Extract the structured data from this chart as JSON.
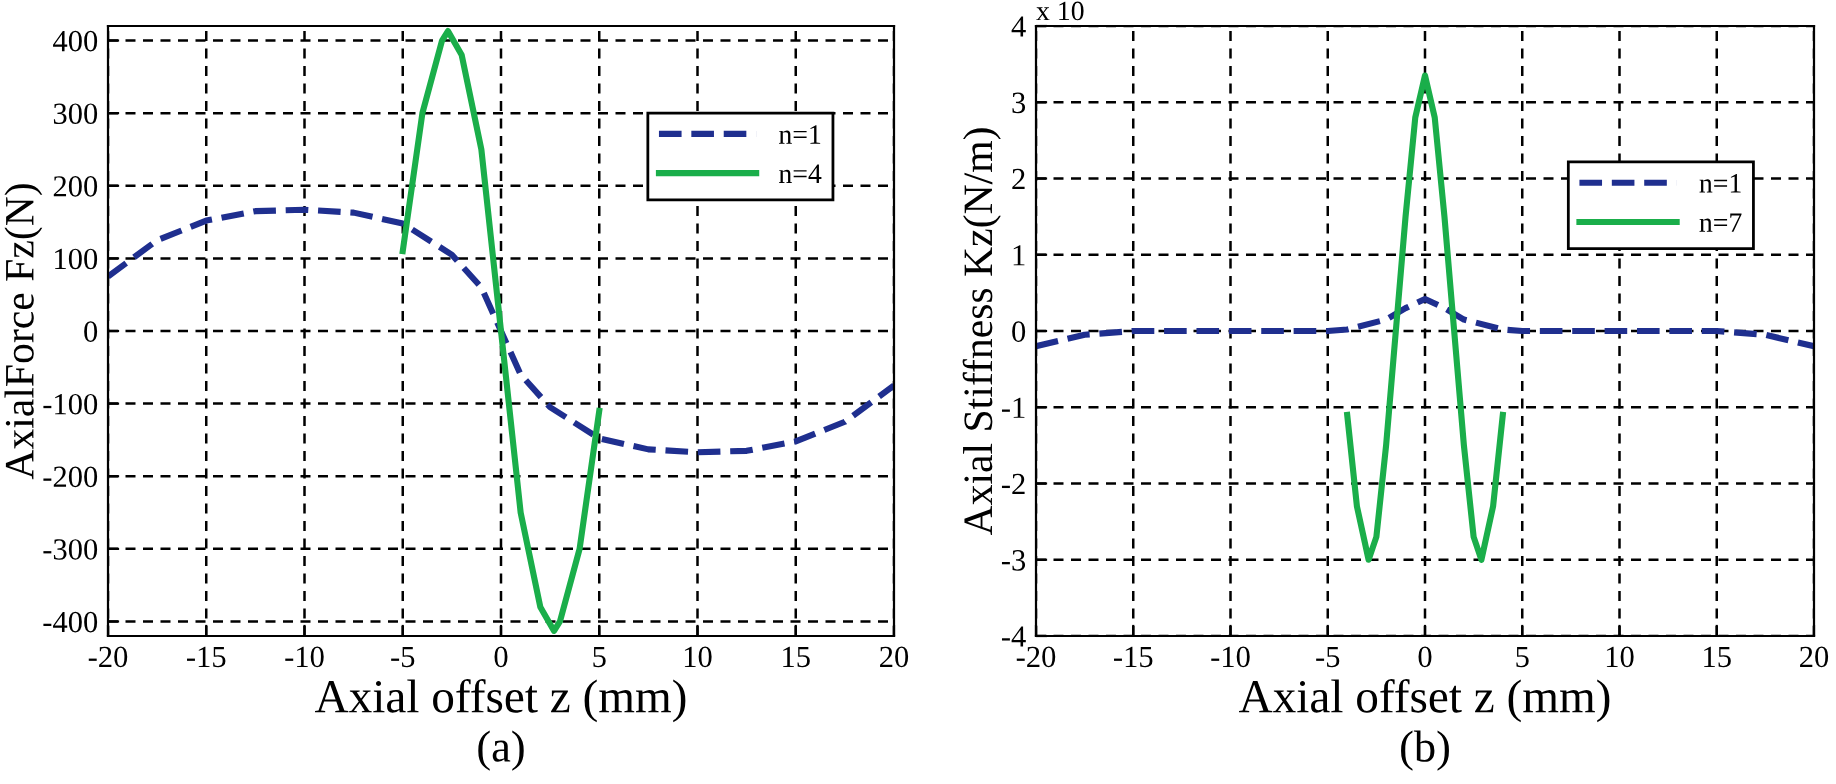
{
  "chart_data": [
    {
      "type": "line",
      "xlabel": "Axial offset z (mm)",
      "ylabel": "AxialForce Fz(N)",
      "annotations": [
        "(a)"
      ],
      "xlim": [
        -20,
        20
      ],
      "xticks": [
        -20,
        -15,
        -10,
        -5,
        0,
        5,
        10,
        15,
        20
      ],
      "ylim": [
        -420,
        420
      ],
      "yticks": [
        -400,
        -300,
        -200,
        -100,
        0,
        100,
        200,
        300,
        400
      ],
      "grid": true,
      "legend": "top right",
      "series": [
        {
          "name": "n=1",
          "color": "#1f2f8f",
          "line_style": "dashed",
          "x": [
            -20,
            -17.5,
            -15,
            -12.5,
            -10,
            -7.5,
            -5,
            -2.5,
            -1,
            0,
            1,
            2.5,
            5,
            7.5,
            10,
            12.5,
            15,
            17.5,
            20
          ],
          "values": [
            75,
            125,
            152,
            165,
            167,
            163,
            148,
            105,
            60,
            0,
            -60,
            -105,
            -148,
            -163,
            -167,
            -165,
            -152,
            -125,
            -75
          ]
        },
        {
          "name": "n=4",
          "color": "#1aae4a",
          "line_style": "solid",
          "x": [
            -5,
            -4,
            -3,
            -2.7,
            -2,
            -1,
            0,
            1,
            2,
            2.7,
            3,
            4,
            5
          ],
          "values": [
            110,
            300,
            400,
            413,
            380,
            250,
            0,
            -250,
            -380,
            -413,
            -400,
            -300,
            -110
          ]
        }
      ]
    },
    {
      "type": "line",
      "xlabel": "Axial offset z (mm)",
      "ylabel": "Axial Stiffness Kz(N/m)",
      "annotations": [
        "x 10",
        "(b)"
      ],
      "xlim": [
        -20,
        20
      ],
      "xticks": [
        -20,
        -15,
        -10,
        -5,
        0,
        5,
        10,
        15,
        20
      ],
      "ylim": [
        -4,
        4
      ],
      "yticks": [
        -4,
        -3,
        -2,
        -1,
        0,
        1,
        2,
        3,
        4
      ],
      "grid": true,
      "legend": "top right",
      "series": [
        {
          "name": "n=1",
          "color": "#1f2f8f",
          "line_style": "dashed",
          "x": [
            -20,
            -17.5,
            -15,
            -12.5,
            -10,
            -7.5,
            -5,
            -4,
            -2,
            -1,
            0,
            1,
            2,
            4,
            5,
            7.5,
            10,
            12.5,
            15,
            17.5,
            20
          ],
          "values": [
            -0.2,
            -0.05,
            0,
            0,
            0,
            0,
            0,
            0.02,
            0.15,
            0.3,
            0.42,
            0.3,
            0.15,
            0.02,
            0,
            0,
            0,
            0,
            0,
            -0.05,
            -0.2
          ]
        },
        {
          "name": "n=7",
          "color": "#1aae4a",
          "line_style": "solid",
          "x": [
            -4,
            -3.5,
            -2.9,
            -2.5,
            -2,
            -1.5,
            -1,
            -0.5,
            0,
            0.5,
            1,
            1.5,
            2,
            2.5,
            2.9,
            3.5,
            4
          ],
          "values": [
            -1.1,
            -2.3,
            -3.0,
            -2.7,
            -1.5,
            0,
            1.5,
            2.8,
            3.35,
            2.8,
            1.5,
            0,
            -1.5,
            -2.7,
            -3.0,
            -2.3,
            -1.1
          ]
        }
      ]
    }
  ]
}
